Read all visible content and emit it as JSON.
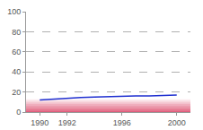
{
  "chart_data": {
    "type": "line",
    "x": [
      1990,
      1991,
      1992,
      1993,
      1994,
      1995,
      1996,
      1997,
      1998,
      1999,
      2000
    ],
    "series": [
      {
        "color": "#1f2fd0",
        "values": [
          12,
          13,
          14,
          14.5,
          15,
          15.5,
          15.5,
          16,
          16,
          16.5,
          17
        ]
      }
    ],
    "xlim": [
      1989,
      2001
    ],
    "xticks": [
      1990,
      1992,
      1996,
      2000
    ],
    "ylim": [
      0,
      100
    ],
    "yticks": [
      0,
      20,
      40,
      60,
      80,
      100
    ],
    "grid": true
  }
}
